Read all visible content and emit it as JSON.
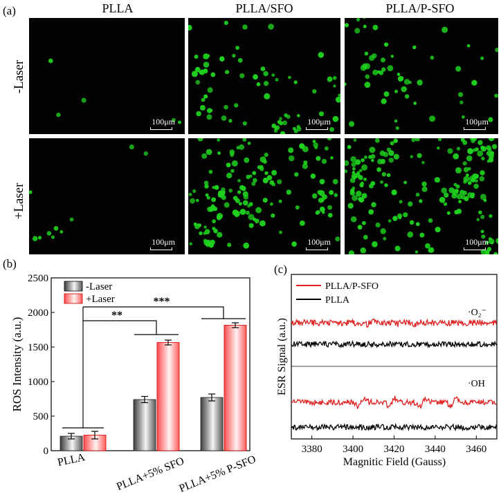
{
  "panel_a": {
    "label": "(a)",
    "columns": [
      "PLLA",
      "PLLA/SFO",
      "PLLA/P-SFO"
    ],
    "rows": [
      "-Laser",
      "+Laser"
    ],
    "scale_bar": "100μm",
    "cell_color": "#1fd21f",
    "cell_density": [
      [
        6,
        70,
        55
      ],
      [
        10,
        150,
        200
      ]
    ]
  },
  "panel_b": {
    "label": "(b)",
    "chart_data": {
      "type": "bar",
      "categories": [
        "PLLA",
        "PLLA+5% SFO",
        "PLLA+5% P-SFO"
      ],
      "series": [
        {
          "name": "-Laser",
          "values": [
            210,
            740,
            770
          ],
          "errors": [
            40,
            45,
            50
          ],
          "color": "#7a7a7a"
        },
        {
          "name": "+Laser",
          "values": [
            225,
            1565,
            1815
          ],
          "errors": [
            55,
            35,
            35
          ],
          "color": "#ff6b6b"
        }
      ],
      "xlabel": "",
      "ylabel": "ROS Intensity (a.u.)",
      "ylim": [
        0,
        2500
      ],
      "yticks": [
        0,
        500,
        1000,
        1500,
        2000,
        2500
      ],
      "legend_placement": "top-left",
      "annotations": [
        "**",
        "***"
      ]
    }
  },
  "panel_c": {
    "label": "(c)",
    "chart_data": {
      "type": "line",
      "xlabel": "Magnitic Field (Gauss)",
      "ylabel": "ESR Signal (a.u.)",
      "xlim": [
        3370,
        3470
      ],
      "xticks": [
        3380,
        3400,
        3420,
        3440,
        3460
      ],
      "legend": [
        {
          "name": "PLLA/P-SFO",
          "color": "#e02020"
        },
        {
          "name": "PLLA",
          "color": "#000000"
        }
      ],
      "groups": [
        "·O₂⁻",
        "·OH"
      ],
      "oh_peaks": [
        3404,
        3419,
        3434,
        3449
      ]
    }
  }
}
